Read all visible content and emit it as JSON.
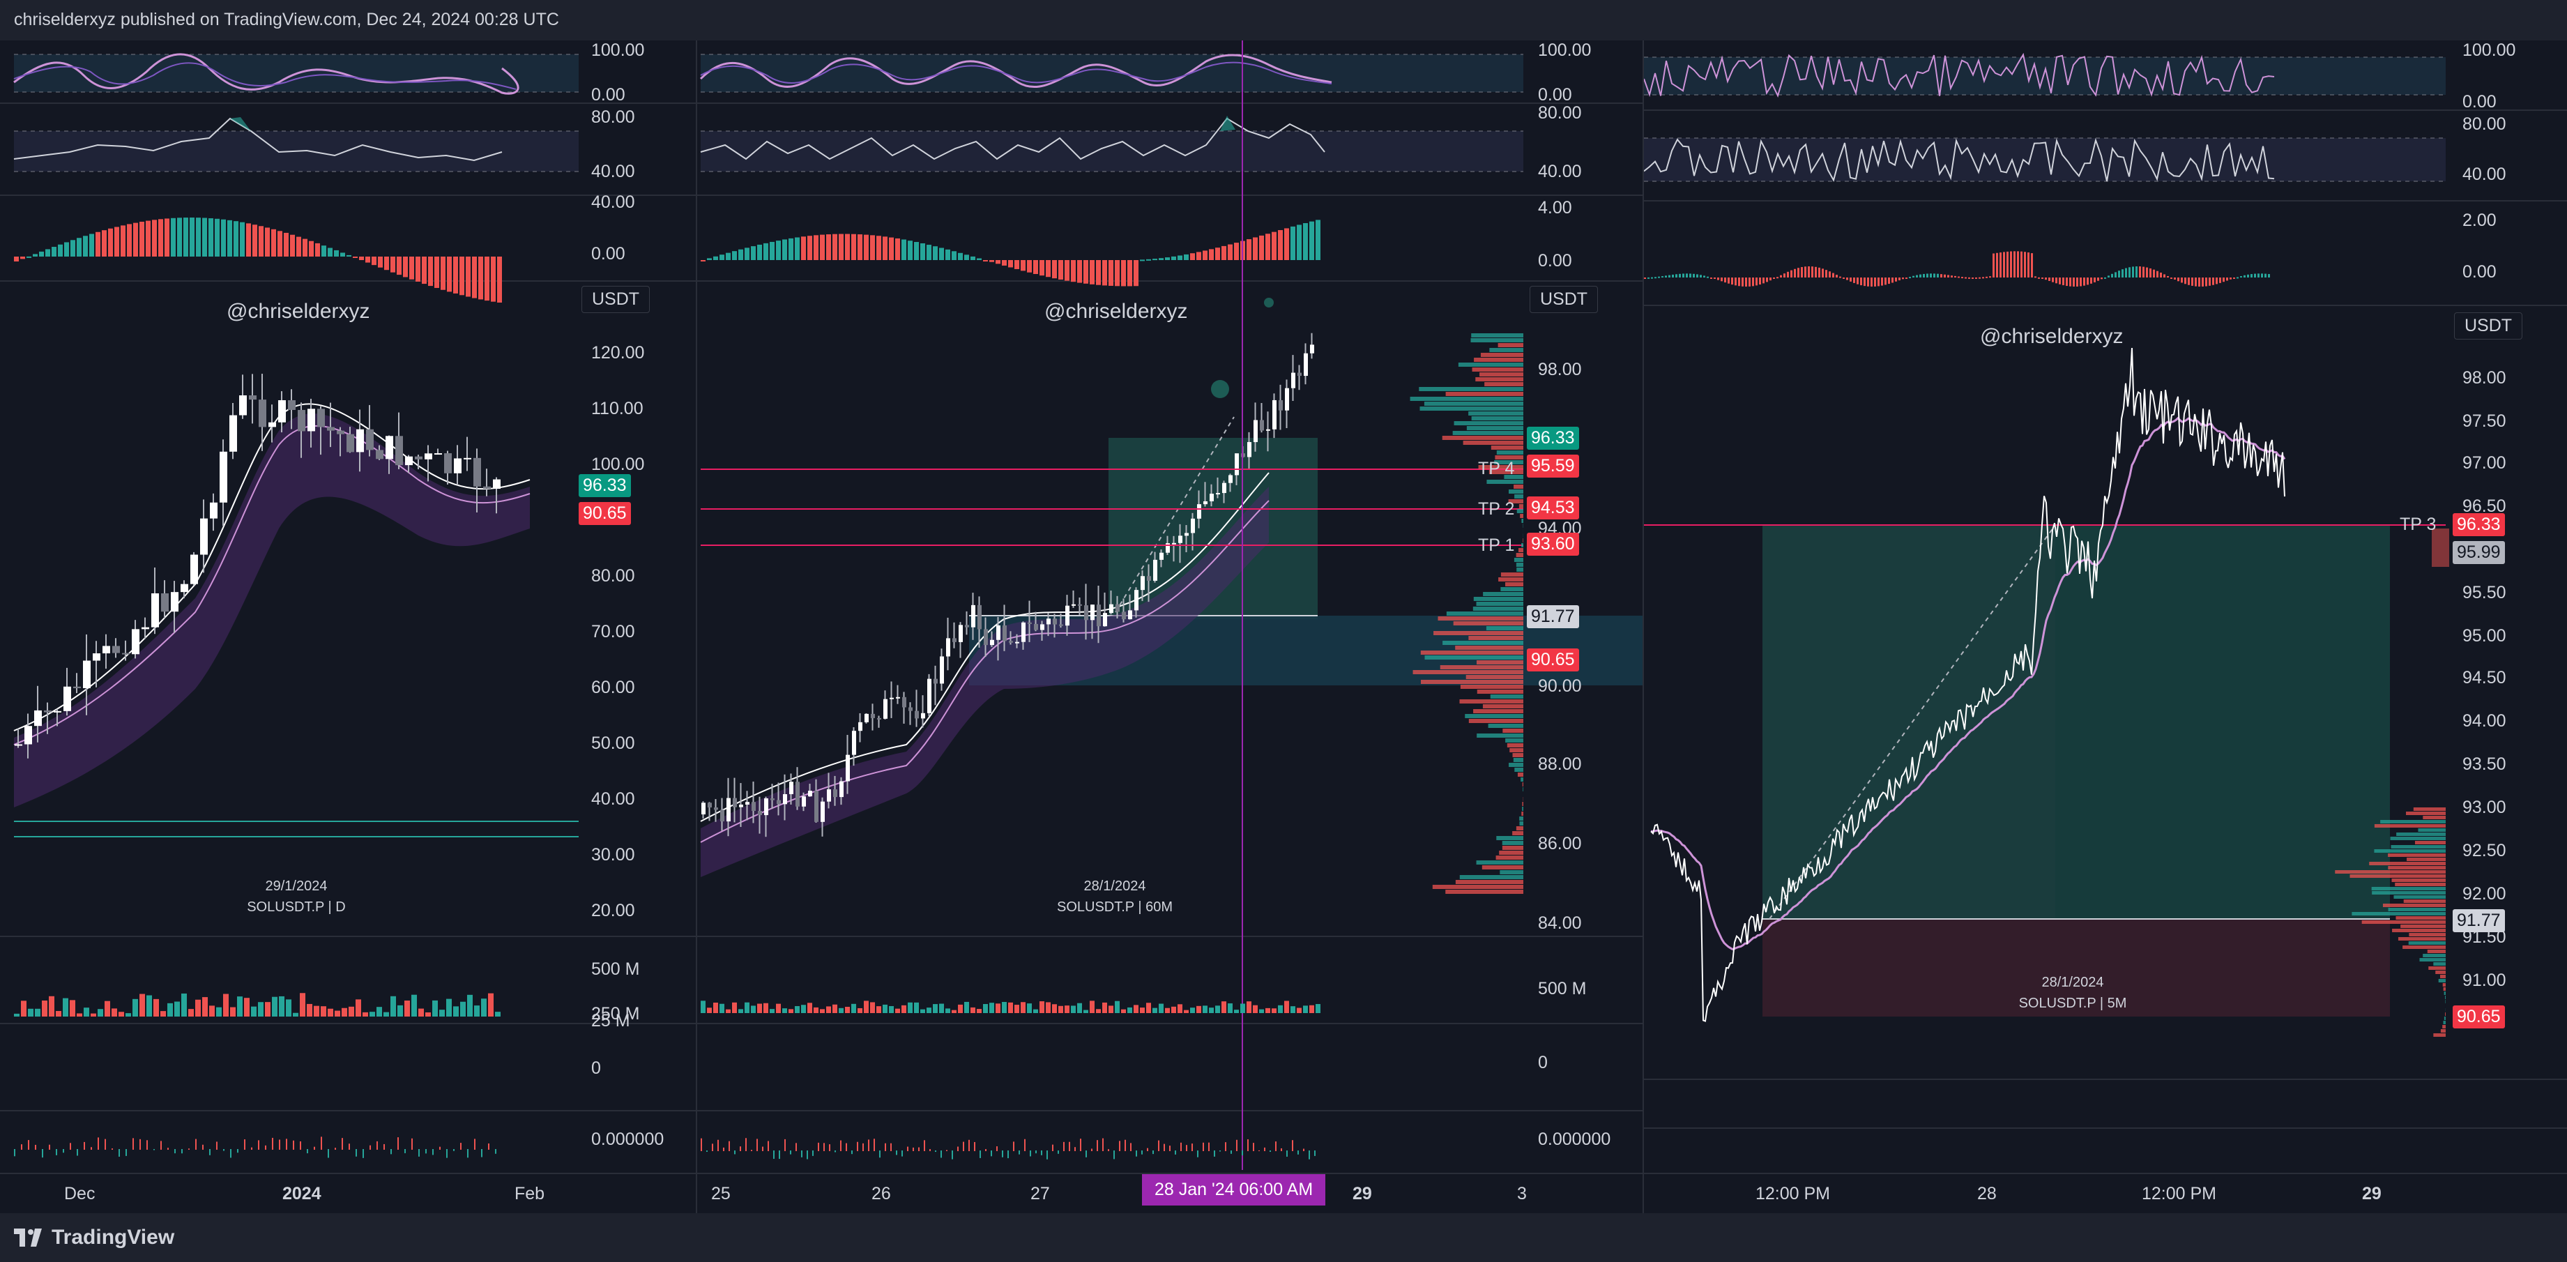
{
  "header": {
    "publisher": "chriselderxyz published on TradingView.com, Dec 24, 2024 00:28 UTC"
  },
  "footer": {
    "brand": "TradingView"
  },
  "colors": {
    "background": "#131722",
    "up": "#26a69a",
    "down": "#ef5350",
    "crosshair": "#9c27b0",
    "tp_line": "#e91e63",
    "tag_green": "#089981",
    "tag_red": "#f23645"
  },
  "panels": [
    {
      "watermark": "@chriselderxyz",
      "currency": "USDT",
      "date_caption": "29/1/2024",
      "symbol_caption": "SOLUSDT.P | D",
      "rsi_axis": [
        "100.00",
        "0.00"
      ],
      "stoch_axis": [
        "80.00",
        "40.00"
      ],
      "macd_axis": [
        "40.00",
        "0.00"
      ],
      "price_axis": [
        "120.00",
        "110.00",
        "100.00",
        "80.00",
        "70.00",
        "60.00",
        "50.00",
        "40.00",
        "30.00",
        "20.00"
      ],
      "price_tags": [
        {
          "value": "96.33",
          "kind": "green"
        },
        {
          "value": "90.65",
          "kind": "red"
        }
      ],
      "volume_axis": [
        "500 M",
        "250 M"
      ],
      "oi_axis": [
        "25 M",
        "0"
      ],
      "funding_axis": [
        "0.000000"
      ],
      "x_axis": [
        {
          "label": "Dec",
          "bold": false
        },
        {
          "label": "2024",
          "bold": true
        },
        {
          "label": "Feb",
          "bold": false
        }
      ]
    },
    {
      "watermark": "@chriselderxyz",
      "currency": "USDT",
      "date_caption": "28/1/2024",
      "symbol_caption": "SOLUSDT.P | 60M",
      "rsi_axis": [
        "100.00",
        "0.00"
      ],
      "stoch_axis": [
        "80.00",
        "40.00"
      ],
      "macd_axis": [
        "4.00",
        "0.00"
      ],
      "price_axis": [
        "98.00",
        "94.00",
        "90.00",
        "88.00",
        "86.00",
        "84.00"
      ],
      "tp_labels": [
        "TP 4",
        "TP 2",
        "TP 1"
      ],
      "price_tags": [
        {
          "value": "96.33",
          "kind": "green"
        },
        {
          "value": "95.59",
          "kind": "red"
        },
        {
          "value": "94.53",
          "kind": "red"
        },
        {
          "value": "93.60",
          "kind": "red"
        },
        {
          "value": "91.77",
          "kind": "gray"
        },
        {
          "value": "90.65",
          "kind": "red"
        }
      ],
      "volume_axis": [
        "500 M"
      ],
      "oi_axis": [
        "0"
      ],
      "funding_axis": [
        "0.000000"
      ],
      "x_axis": [
        {
          "label": "25",
          "bold": false
        },
        {
          "label": "26",
          "bold": false
        },
        {
          "label": "27",
          "bold": false
        },
        {
          "label": "29",
          "bold": true
        },
        {
          "label": "3",
          "bold": false
        }
      ],
      "crosshair_label": "28 Jan '24   06:00 AM"
    },
    {
      "watermark": "@chriselderxyz",
      "currency": "USDT",
      "date_caption": "28/1/2024",
      "symbol_caption": "SOLUSDT.P | 5M",
      "rsi_axis": [
        "100.00",
        "0.00"
      ],
      "stoch_axis": [
        "80.00",
        "40.00"
      ],
      "macd_axis": [
        "2.00",
        "0.00"
      ],
      "price_axis": [
        "98.00",
        "97.50",
        "97.00",
        "96.50",
        "95.50",
        "95.00",
        "94.50",
        "94.00",
        "93.50",
        "93.00",
        "92.50",
        "92.00",
        "91.50",
        "91.00"
      ],
      "tp_labels": [
        "TP 3"
      ],
      "price_tags": [
        {
          "value": "96.33",
          "kind": "red"
        },
        {
          "value": "95.99",
          "kind": "gray"
        },
        {
          "value": "91.77",
          "kind": "gray"
        },
        {
          "value": "90.65",
          "kind": "red"
        }
      ],
      "x_axis": [
        {
          "label": "12:00 PM",
          "bold": false
        },
        {
          "label": "28",
          "bold": false
        },
        {
          "label": "12:00 PM",
          "bold": false
        },
        {
          "label": "29",
          "bold": true
        }
      ]
    }
  ]
}
